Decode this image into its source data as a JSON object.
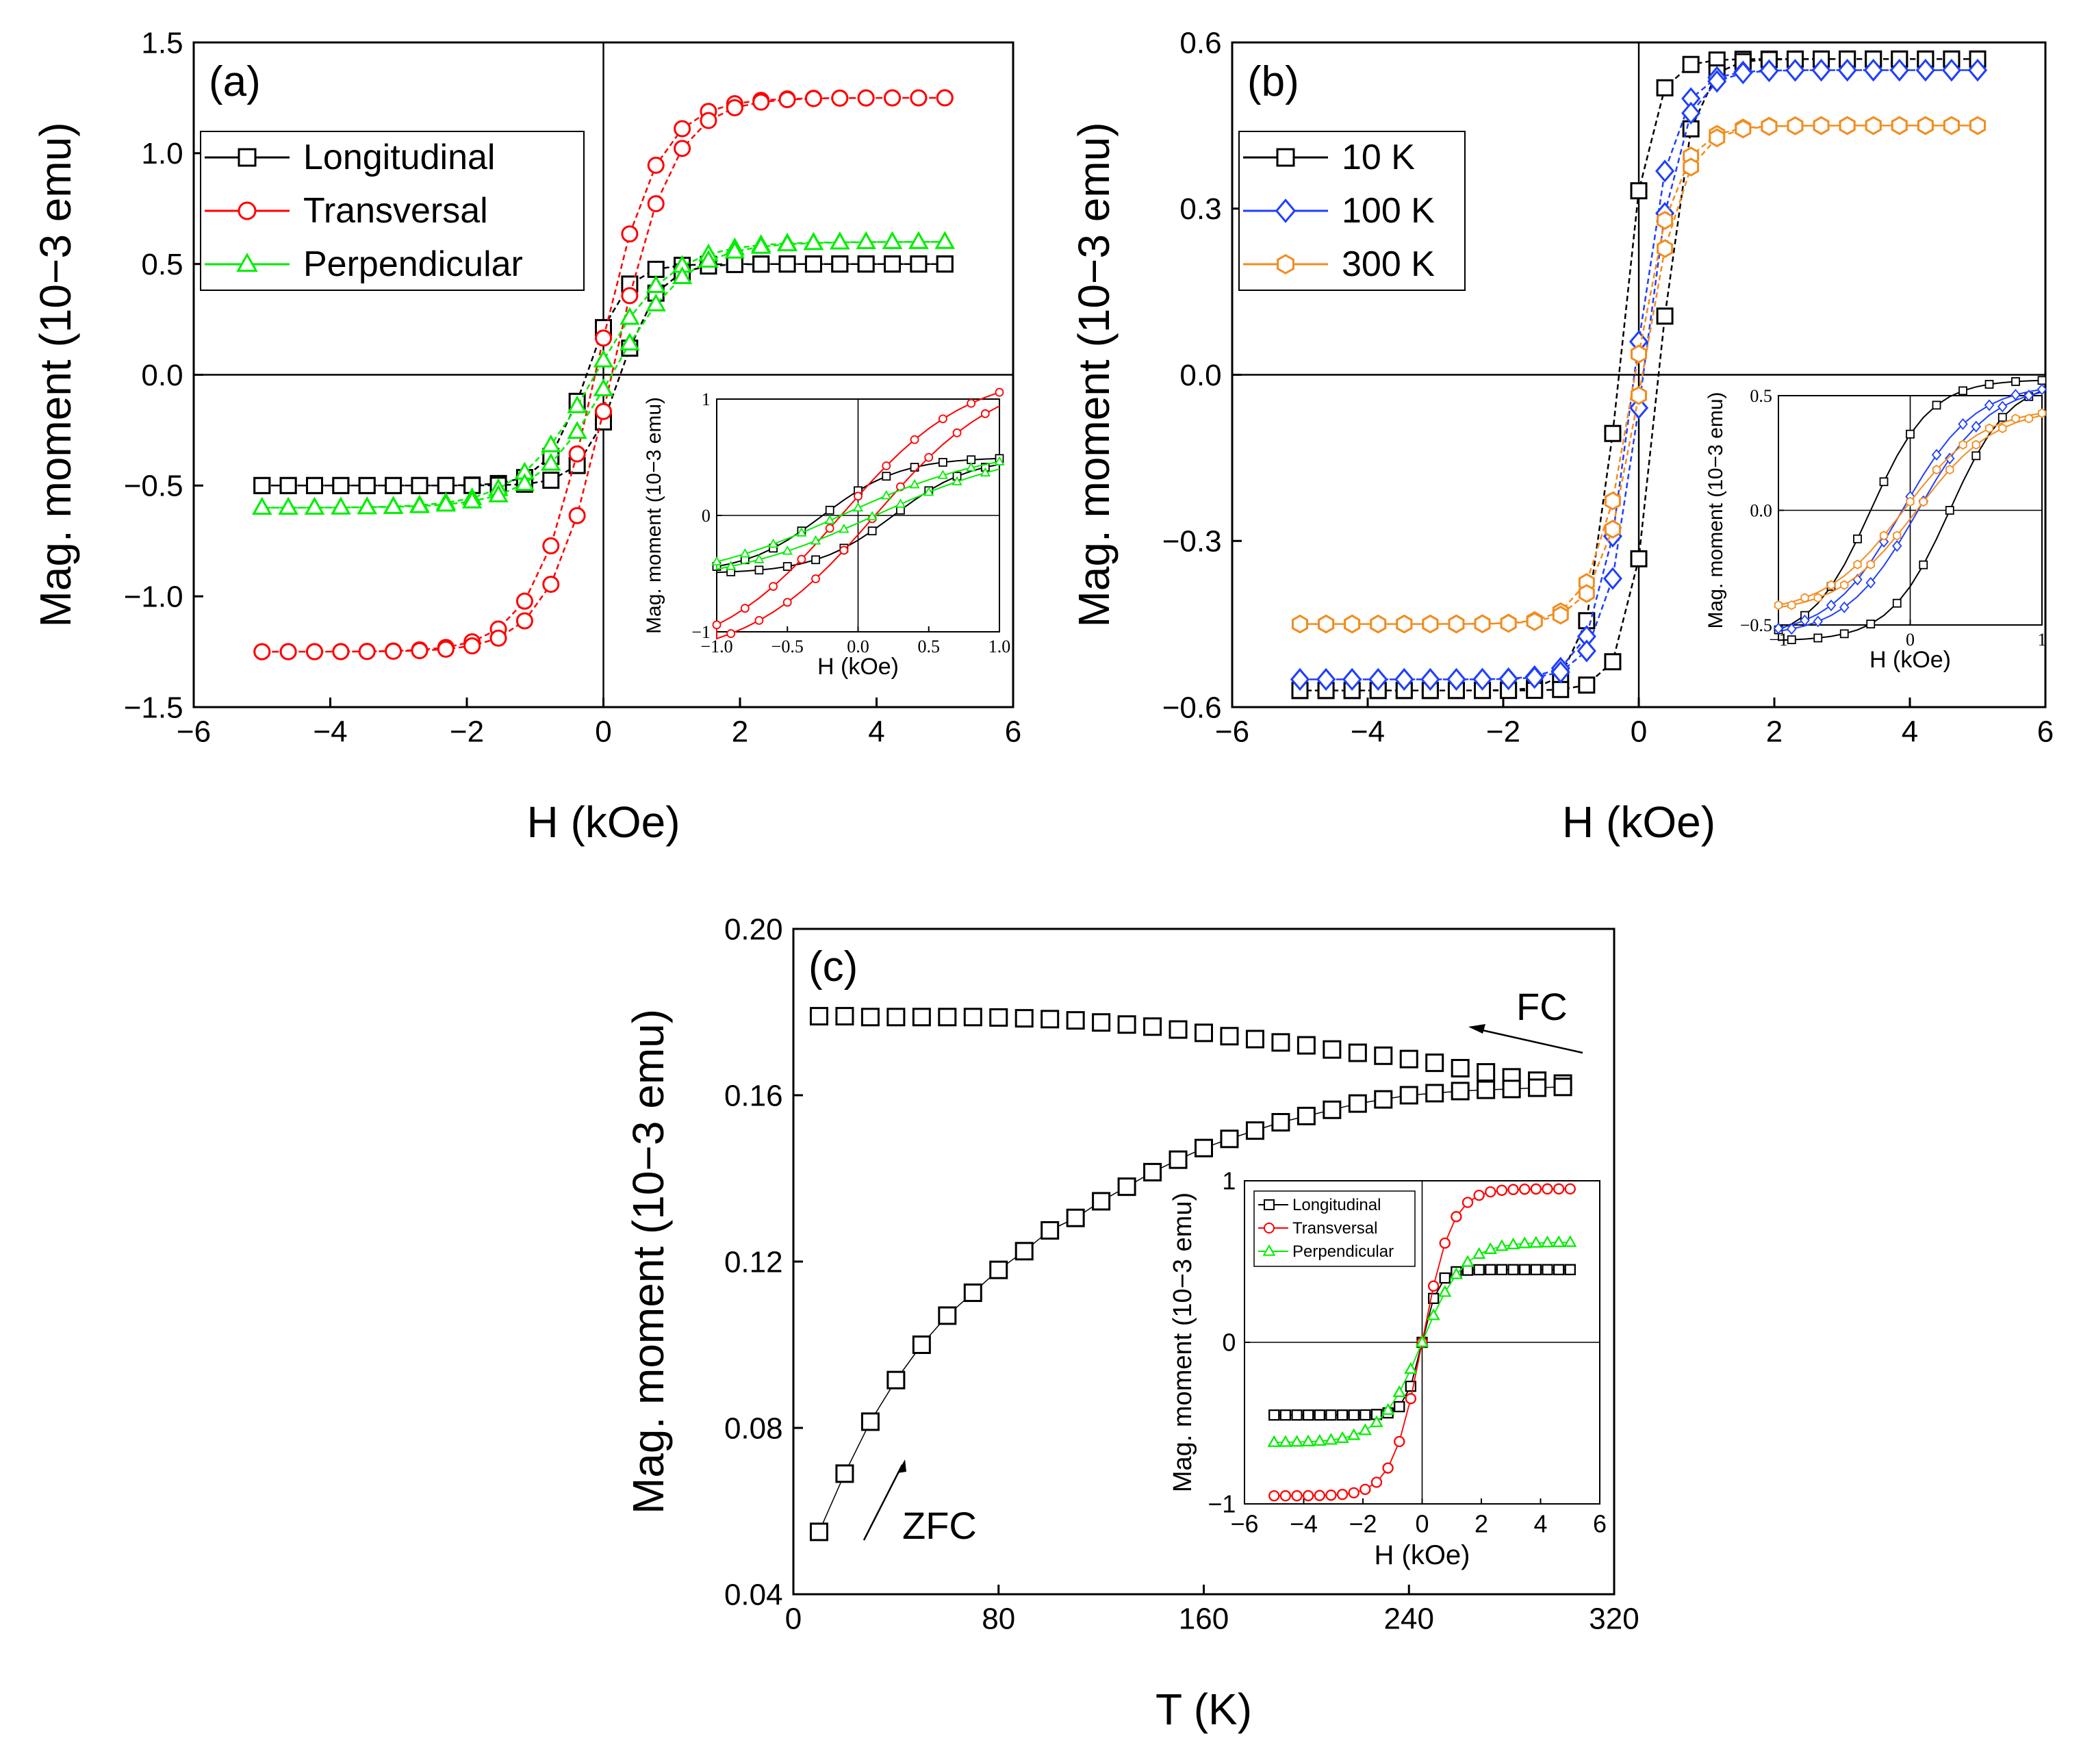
{
  "chart_data": [
    {
      "id": "a",
      "panel_label": "(a)",
      "type": "line",
      "xlabel": "H (kOe)",
      "ylabel": "Mag. moment (10−3 emu)",
      "xlim": [
        -6,
        6
      ],
      "ylim": [
        -1.5,
        1.5
      ],
      "xticks": [
        "−6",
        "−4",
        "−2",
        "0",
        "2",
        "4",
        "6"
      ],
      "yticks": [
        "−1.5",
        "−1.0",
        "−0.5",
        "0.0",
        "0.5",
        "1.0",
        "1.5"
      ],
      "legend_position": "upper-left",
      "series": [
        {
          "name": "Longitudinal",
          "color": "#000000",
          "marker": "square",
          "Ms": 0.5,
          "Hc": 0.25,
          "w": 0.55
        },
        {
          "name": "Transversal",
          "color": "#ff0000",
          "marker": "circle",
          "Ms": 1.25,
          "Hc": 0.12,
          "w": 0.9
        },
        {
          "name": "Perpendicular",
          "color": "#00ee00",
          "marker": "triangle",
          "Ms": 0.6,
          "Hc": 0.12,
          "w": 1.1
        }
      ],
      "inset": {
        "xlabel": "H (kOe)",
        "ylabel": "Mag. moment (10−3 emu)",
        "xlim": [
          -1,
          1
        ],
        "ylim": [
          -1,
          1
        ],
        "xticks": [
          "−1.0",
          "−0.5",
          "0.0",
          "0.5",
          "1.0"
        ],
        "yticks": [
          "−1",
          "0",
          "1"
        ]
      }
    },
    {
      "id": "b",
      "panel_label": "(b)",
      "type": "line",
      "xlabel": "H (kOe)",
      "ylabel": "Mag. moment (10−3 emu)",
      "xlim": [
        -6,
        6
      ],
      "ylim": [
        -0.6,
        0.6
      ],
      "xticks": [
        "−6",
        "−4",
        "−2",
        "0",
        "2",
        "4",
        "6"
      ],
      "yticks": [
        "−0.6",
        "−0.3",
        "0.0",
        "0.3",
        "0.6"
      ],
      "legend_position": "upper-left",
      "series": [
        {
          "name": "10 K",
          "color": "#000000",
          "marker": "square",
          "Ms": 0.57,
          "Hc": 0.3,
          "w": 0.45
        },
        {
          "name": "100 K",
          "color": "#1f3fff",
          "marker": "diamond",
          "Ms": 0.55,
          "Hc": 0.06,
          "w": 0.55
        },
        {
          "name": "300 K",
          "color": "#f28c1f",
          "marker": "hexagon",
          "Ms": 0.45,
          "Hc": 0.05,
          "w": 0.6
        }
      ],
      "inset": {
        "xlabel": "H (kOe)",
        "ylabel": "Mag. moment (10−3 emu)",
        "xlim": [
          -1,
          1
        ],
        "ylim": [
          -0.5,
          0.5
        ],
        "xticks": [
          "−1",
          "0",
          "1"
        ],
        "yticks": [
          "−0.5",
          "0.0",
          "0.5"
        ]
      }
    },
    {
      "id": "c",
      "panel_label": "(c)",
      "type": "scatter",
      "xlabel": "T (K)",
      "ylabel": "Mag. moment (10−3 emu)",
      "xlim": [
        0,
        320
      ],
      "ylim": [
        0.04,
        0.2
      ],
      "xticks": [
        "0",
        "80",
        "160",
        "240",
        "320"
      ],
      "yticks": [
        "0.04",
        "0.08",
        "0.12",
        "0.16",
        "0.20"
      ],
      "annotations": [
        "FC",
        "ZFC"
      ],
      "series": [
        {
          "name": "FC",
          "color": "#000000",
          "marker": "square",
          "x": [
            10,
            20,
            30,
            40,
            50,
            60,
            70,
            80,
            90,
            100,
            110,
            120,
            130,
            140,
            150,
            160,
            170,
            180,
            190,
            200,
            210,
            220,
            230,
            240,
            250,
            260,
            270,
            280,
            290,
            300
          ],
          "y": [
            0.179,
            0.179,
            0.1788,
            0.1788,
            0.1788,
            0.1788,
            0.1788,
            0.1787,
            0.1785,
            0.1783,
            0.178,
            0.1775,
            0.177,
            0.1765,
            0.1758,
            0.175,
            0.1742,
            0.1735,
            0.1727,
            0.172,
            0.171,
            0.1702,
            0.1695,
            0.1687,
            0.1678,
            0.1665,
            0.1655,
            0.1643,
            0.1635,
            0.1628
          ]
        },
        {
          "name": "ZFC",
          "color": "#000000",
          "marker": "square",
          "x": [
            10,
            20,
            30,
            40,
            50,
            60,
            70,
            80,
            90,
            100,
            110,
            120,
            130,
            140,
            150,
            160,
            170,
            180,
            190,
            200,
            210,
            220,
            230,
            240,
            250,
            260,
            270,
            280,
            290,
            300
          ],
          "y": [
            0.055,
            0.069,
            0.0815,
            0.0915,
            0.1,
            0.107,
            0.1125,
            0.118,
            0.1225,
            0.1275,
            0.1305,
            0.1345,
            0.138,
            0.1415,
            0.1445,
            0.1473,
            0.1495,
            0.1515,
            0.1535,
            0.155,
            0.1565,
            0.158,
            0.159,
            0.16,
            0.1605,
            0.161,
            0.1613,
            0.1615,
            0.1618,
            0.162
          ]
        }
      ],
      "inset": {
        "xlabel": "H (kOe)",
        "ylabel": "Mag. moment (10−3 emu)",
        "xlim": [
          -6,
          6
        ],
        "ylim": [
          -1,
          1
        ],
        "xticks": [
          "−6",
          "−4",
          "−2",
          "0",
          "2",
          "4",
          "6"
        ],
        "yticks": [
          "−1",
          "0",
          "1"
        ],
        "series": [
          {
            "name": "Longitudinal",
            "color": "#000000",
            "marker": "square",
            "Ms": 0.45,
            "Hc": 0,
            "w": 0.55
          },
          {
            "name": "Transversal",
            "color": "#ff0000",
            "marker": "circle",
            "Ms": 0.95,
            "Hc": 0,
            "w": 1.0
          },
          {
            "name": "Perpendicular",
            "color": "#00ee00",
            "marker": "triangle",
            "Ms": 0.62,
            "Hc": 0,
            "w": 1.4
          }
        ]
      }
    }
  ]
}
